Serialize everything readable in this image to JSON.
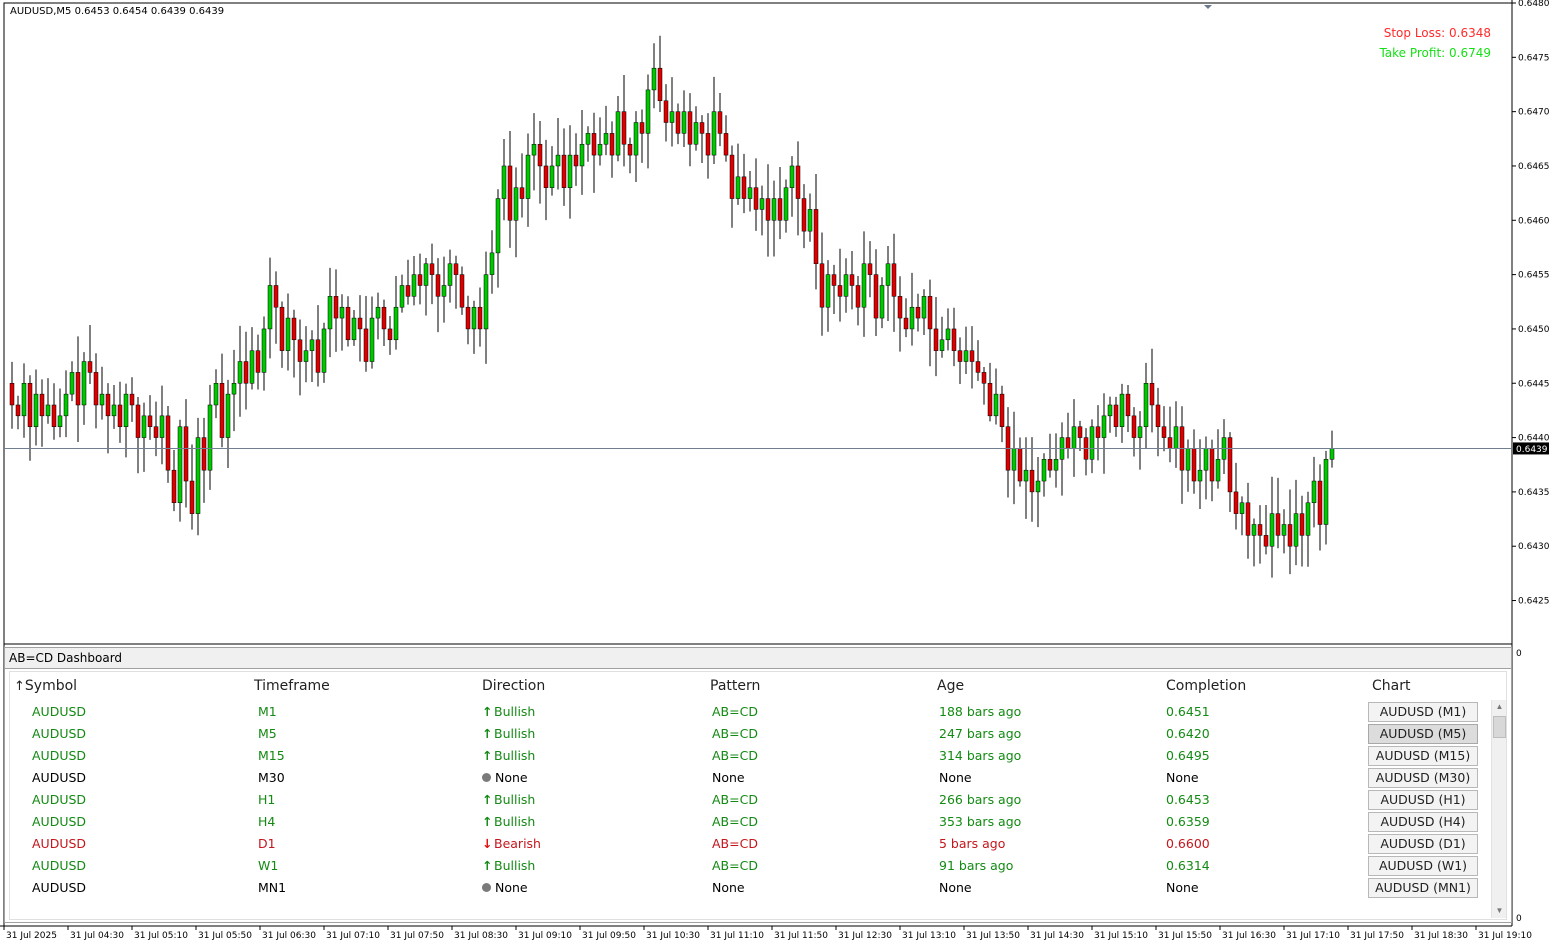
{
  "chart": {
    "symbol_info": "AUDUSD,M5  0.6453 0.6454 0.6439 0.6439",
    "stop_loss": "Stop Loss: 0.6348",
    "take_profit": "Take Profit: 0.6749",
    "current_price": "0.6439",
    "indicator_zero_label": "0",
    "indicator_bottom_label": "0",
    "colors": {
      "bull": "#00c800",
      "bear": "#dc0000",
      "wick": "#000000",
      "price_line": "#708090",
      "price_label_bg": "#000000",
      "stop_loss": "#ff2a2a",
      "take_profit": "#16e016"
    }
  },
  "chart_data": {
    "type": "candlestick",
    "instrument": "AUDUSD",
    "timeframe": "M5",
    "ylim": [
      0.6421,
      0.648
    ],
    "y_ticks": [
      "0.6480",
      "0.6475",
      "0.6470",
      "0.6465",
      "0.6460",
      "0.6455",
      "0.6450",
      "0.6445",
      "0.6440",
      "0.6435",
      "0.6430",
      "0.6425"
    ],
    "x_ticks": [
      "31 Jul 2025",
      "31 Jul 04:30",
      "31 Jul 05:10",
      "31 Jul 05:50",
      "31 Jul 06:30",
      "31 Jul 07:10",
      "31 Jul 07:50",
      "31 Jul 08:30",
      "31 Jul 09:10",
      "31 Jul 09:50",
      "31 Jul 10:30",
      "31 Jul 11:10",
      "31 Jul 11:50",
      "31 Jul 12:30",
      "31 Jul 13:10",
      "31 Jul 13:50",
      "31 Jul 14:30",
      "31 Jul 15:10",
      "31 Jul 15:50",
      "31 Jul 16:30",
      "31 Jul 17:10",
      "31 Jul 17:50",
      "31 Jul 18:30",
      "31 Jul 19:10"
    ],
    "closes": [
      0.6443,
      0.6442,
      0.6445,
      0.6441,
      0.6444,
      0.6442,
      0.6443,
      0.6441,
      0.6442,
      0.6444,
      0.6446,
      0.6443,
      0.6447,
      0.6446,
      0.6443,
      0.6444,
      0.6442,
      0.6443,
      0.6441,
      0.6444,
      0.6443,
      0.644,
      0.6442,
      0.6441,
      0.644,
      0.6442,
      0.6437,
      0.6434,
      0.6441,
      0.6436,
      0.6433,
      0.644,
      0.6437,
      0.6443,
      0.6445,
      0.644,
      0.6444,
      0.6445,
      0.6447,
      0.6445,
      0.6448,
      0.6446,
      0.645,
      0.6454,
      0.6452,
      0.6448,
      0.6451,
      0.6449,
      0.6447,
      0.6448,
      0.6449,
      0.6446,
      0.645,
      0.6453,
      0.6451,
      0.6452,
      0.6449,
      0.6451,
      0.645,
      0.6447,
      0.6451,
      0.6452,
      0.645,
      0.6449,
      0.6452,
      0.6454,
      0.6453,
      0.6455,
      0.6454,
      0.6456,
      0.6455,
      0.6453,
      0.6454,
      0.6456,
      0.6455,
      0.6452,
      0.645,
      0.6452,
      0.645,
      0.6455,
      0.6457,
      0.6462,
      0.6465,
      0.646,
      0.6463,
      0.6462,
      0.6466,
      0.6467,
      0.6465,
      0.6463,
      0.6465,
      0.6466,
      0.6463,
      0.6466,
      0.6465,
      0.6467,
      0.6468,
      0.6466,
      0.6467,
      0.6468,
      0.6466,
      0.647,
      0.6467,
      0.6466,
      0.6469,
      0.6468,
      0.6472,
      0.6474,
      0.6471,
      0.6469,
      0.647,
      0.6468,
      0.647,
      0.6467,
      0.6469,
      0.6468,
      0.6466,
      0.647,
      0.6468,
      0.6466,
      0.6462,
      0.6464,
      0.6462,
      0.6463,
      0.6461,
      0.6462,
      0.646,
      0.6462,
      0.646,
      0.6463,
      0.6465,
      0.6462,
      0.6459,
      0.6461,
      0.6456,
      0.6452,
      0.6455,
      0.6454,
      0.6453,
      0.6455,
      0.6454,
      0.6452,
      0.6456,
      0.6455,
      0.6451,
      0.6454,
      0.6456,
      0.6453,
      0.6451,
      0.645,
      0.6452,
      0.6451,
      0.6453,
      0.645,
      0.6448,
      0.6449,
      0.645,
      0.6448,
      0.6447,
      0.6448,
      0.6447,
      0.6446,
      0.6445,
      0.6442,
      0.6444,
      0.6441,
      0.6437,
      0.6439,
      0.6436,
      0.6437,
      0.6435,
      0.6436,
      0.6438,
      0.6437,
      0.6438,
      0.644,
      0.6439,
      0.6441,
      0.644,
      0.6438,
      0.6441,
      0.644,
      0.6442,
      0.6443,
      0.6441,
      0.6444,
      0.6442,
      0.644,
      0.6441,
      0.6445,
      0.6443,
      0.6441,
      0.644,
      0.6439,
      0.6441,
      0.6437,
      0.6439,
      0.6436,
      0.6437,
      0.6439,
      0.6436,
      0.6438,
      0.644,
      0.6435,
      0.6433,
      0.6434,
      0.6431,
      0.6432,
      0.6431,
      0.643,
      0.6433,
      0.6431,
      0.6432,
      0.643,
      0.6433,
      0.6431,
      0.6434,
      0.6436,
      0.6432,
      0.6438,
      0.6439
    ],
    "series": [
      {
        "name": "AUDUSD,M5"
      }
    ]
  },
  "dashboard": {
    "title": "AB=CD Dashboard",
    "sort_arrow": "↑",
    "columns": [
      "Symbol",
      "Timeframe",
      "Direction",
      "Pattern",
      "Age",
      "Completion",
      "Chart"
    ],
    "rows": [
      {
        "symbol": "AUDUSD",
        "timeframe": "M1",
        "direction": "Bullish",
        "pattern": "AB=CD",
        "age": "188 bars ago",
        "completion": "0.6451",
        "chart": "AUDUSD (M1)",
        "color": "green",
        "icon": "up-arrow-icon"
      },
      {
        "symbol": "AUDUSD",
        "timeframe": "M5",
        "direction": "Bullish",
        "pattern": "AB=CD",
        "age": "247 bars ago",
        "completion": "0.6420",
        "chart": "AUDUSD (M5)",
        "color": "green",
        "icon": "up-arrow-icon"
      },
      {
        "symbol": "AUDUSD",
        "timeframe": "M15",
        "direction": "Bullish",
        "pattern": "AB=CD",
        "age": "314 bars ago",
        "completion": "0.6495",
        "chart": "AUDUSD (M15)",
        "color": "green",
        "icon": "up-arrow-icon"
      },
      {
        "symbol": "AUDUSD",
        "timeframe": "M30",
        "direction": "None",
        "pattern": "None",
        "age": "None",
        "completion": "None",
        "chart": "AUDUSD (M30)",
        "color": "black",
        "icon": "dot-icon"
      },
      {
        "symbol": "AUDUSD",
        "timeframe": "H1",
        "direction": "Bullish",
        "pattern": "AB=CD",
        "age": "266 bars ago",
        "completion": "0.6453",
        "chart": "AUDUSD (H1)",
        "color": "green",
        "icon": "up-arrow-icon"
      },
      {
        "symbol": "AUDUSD",
        "timeframe": "H4",
        "direction": "Bullish",
        "pattern": "AB=CD",
        "age": "353 bars ago",
        "completion": "0.6359",
        "chart": "AUDUSD (H4)",
        "color": "green",
        "icon": "up-arrow-icon"
      },
      {
        "symbol": "AUDUSD",
        "timeframe": "D1",
        "direction": "Bearish",
        "pattern": "AB=CD",
        "age": "5 bars ago",
        "completion": "0.6600",
        "chart": "AUDUSD (D1)",
        "color": "red",
        "icon": "down-arrow-icon"
      },
      {
        "symbol": "AUDUSD",
        "timeframe": "W1",
        "direction": "Bullish",
        "pattern": "AB=CD",
        "age": "91 bars ago",
        "completion": "0.6314",
        "chart": "AUDUSD (W1)",
        "color": "green",
        "icon": "up-arrow-icon"
      },
      {
        "symbol": "AUDUSD",
        "timeframe": "MN1",
        "direction": "None",
        "pattern": "None",
        "age": "None",
        "completion": "None",
        "chart": "AUDUSD (MN1)",
        "color": "black",
        "icon": "dot-icon"
      }
    ],
    "active_row": 1
  }
}
